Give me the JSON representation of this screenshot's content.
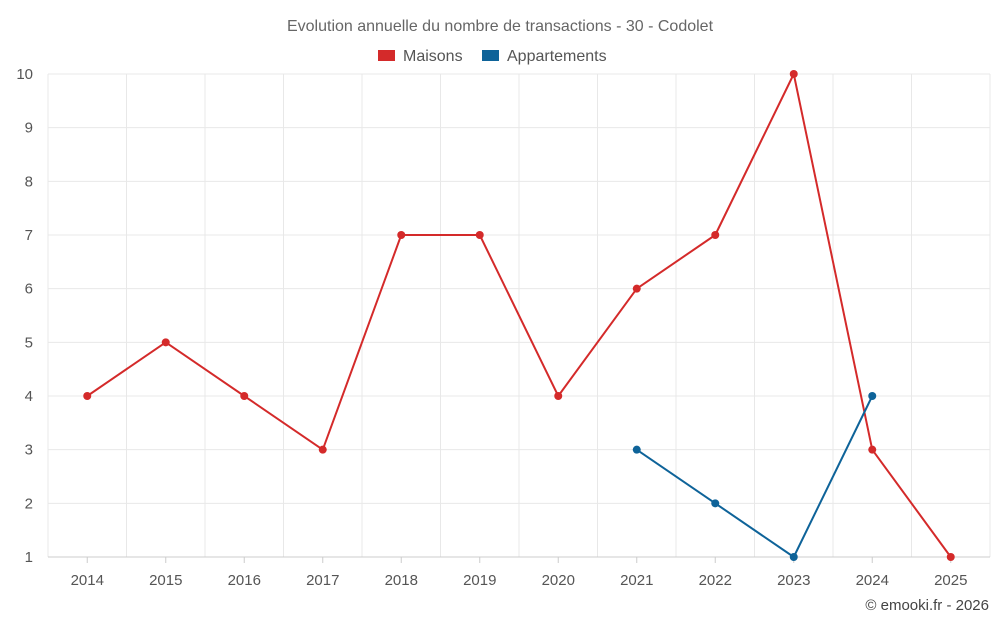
{
  "chart_data": {
    "type": "line",
    "title": "Evolution annuelle du nombre de transactions - 30 - Codolet",
    "categories": [
      "2014",
      "2015",
      "2016",
      "2017",
      "2018",
      "2019",
      "2020",
      "2021",
      "2022",
      "2023",
      "2024",
      "2025"
    ],
    "ylim": [
      1,
      10
    ],
    "yticks": [
      "1",
      "2",
      "3",
      "4",
      "5",
      "6",
      "7",
      "8",
      "9",
      "10"
    ],
    "grid": true,
    "legend_position": "top-center",
    "series": [
      {
        "name": "Maisons",
        "color": "#d42a2a",
        "values": [
          4,
          5,
          4,
          3,
          7,
          7,
          4,
          6,
          7,
          10,
          3,
          1
        ]
      },
      {
        "name": "Appartements",
        "color": "#0e6399",
        "values": [
          null,
          null,
          null,
          null,
          null,
          null,
          null,
          3,
          2,
          1,
          4,
          null
        ]
      }
    ]
  },
  "credit": "© emooki.fr - 2026"
}
